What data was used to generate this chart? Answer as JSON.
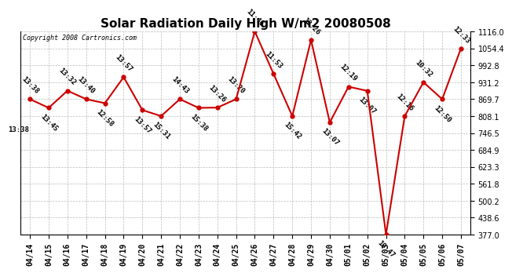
{
  "title": "Solar Radiation Daily High W/m2 20080508",
  "copyright": "Copyright 2008 Cartronics.com",
  "x_labels": [
    "04/14",
    "04/15",
    "04/16",
    "04/17",
    "04/18",
    "04/19",
    "04/20",
    "04/21",
    "04/22",
    "04/23",
    "04/24",
    "04/25",
    "04/26",
    "04/27",
    "04/28",
    "04/29",
    "04/30",
    "05/01",
    "05/02",
    "05/03",
    "05/04",
    "05/05",
    "05/06",
    "05/07"
  ],
  "y_values": [
    869.7,
    838.0,
    900.5,
    869.7,
    855.0,
    950.0,
    830.0,
    808.1,
    869.7,
    838.0,
    839.0,
    869.7,
    1116.0,
    962.0,
    808.1,
    1085.0,
    785.0,
    915.0,
    900.0,
    377.0,
    808.1,
    931.2,
    869.7,
    1054.4
  ],
  "time_labels": [
    "13:38",
    "13:45",
    "13:32",
    "13:40",
    "12:58",
    "13:57",
    "13:57",
    "15:31",
    "14:43",
    "15:38",
    "13:26",
    "13:20",
    "11:46",
    "11:53",
    "15:42",
    "12:26",
    "13:07",
    "12:19",
    "13:07",
    "10:47",
    "12:16",
    "10:32",
    "12:50",
    "12:33"
  ],
  "time_label_above": [
    true,
    false,
    true,
    true,
    false,
    true,
    false,
    false,
    true,
    false,
    true,
    true,
    true,
    true,
    false,
    true,
    false,
    true,
    false,
    false,
    true,
    true,
    false,
    true
  ],
  "y_min": 377.0,
  "y_max": 1116.0,
  "y_ticks": [
    377.0,
    438.6,
    500.2,
    561.8,
    623.3,
    684.9,
    746.5,
    808.1,
    869.7,
    931.2,
    992.8,
    1054.4,
    1116.0
  ],
  "line_color": "#cc0000",
  "marker_color": "#cc0000",
  "bg_color": "#ffffff",
  "grid_color": "#bbbbbb",
  "title_fontsize": 11,
  "tick_fontsize": 7,
  "annotation_fontsize": 6.5,
  "left_label": "13:38"
}
